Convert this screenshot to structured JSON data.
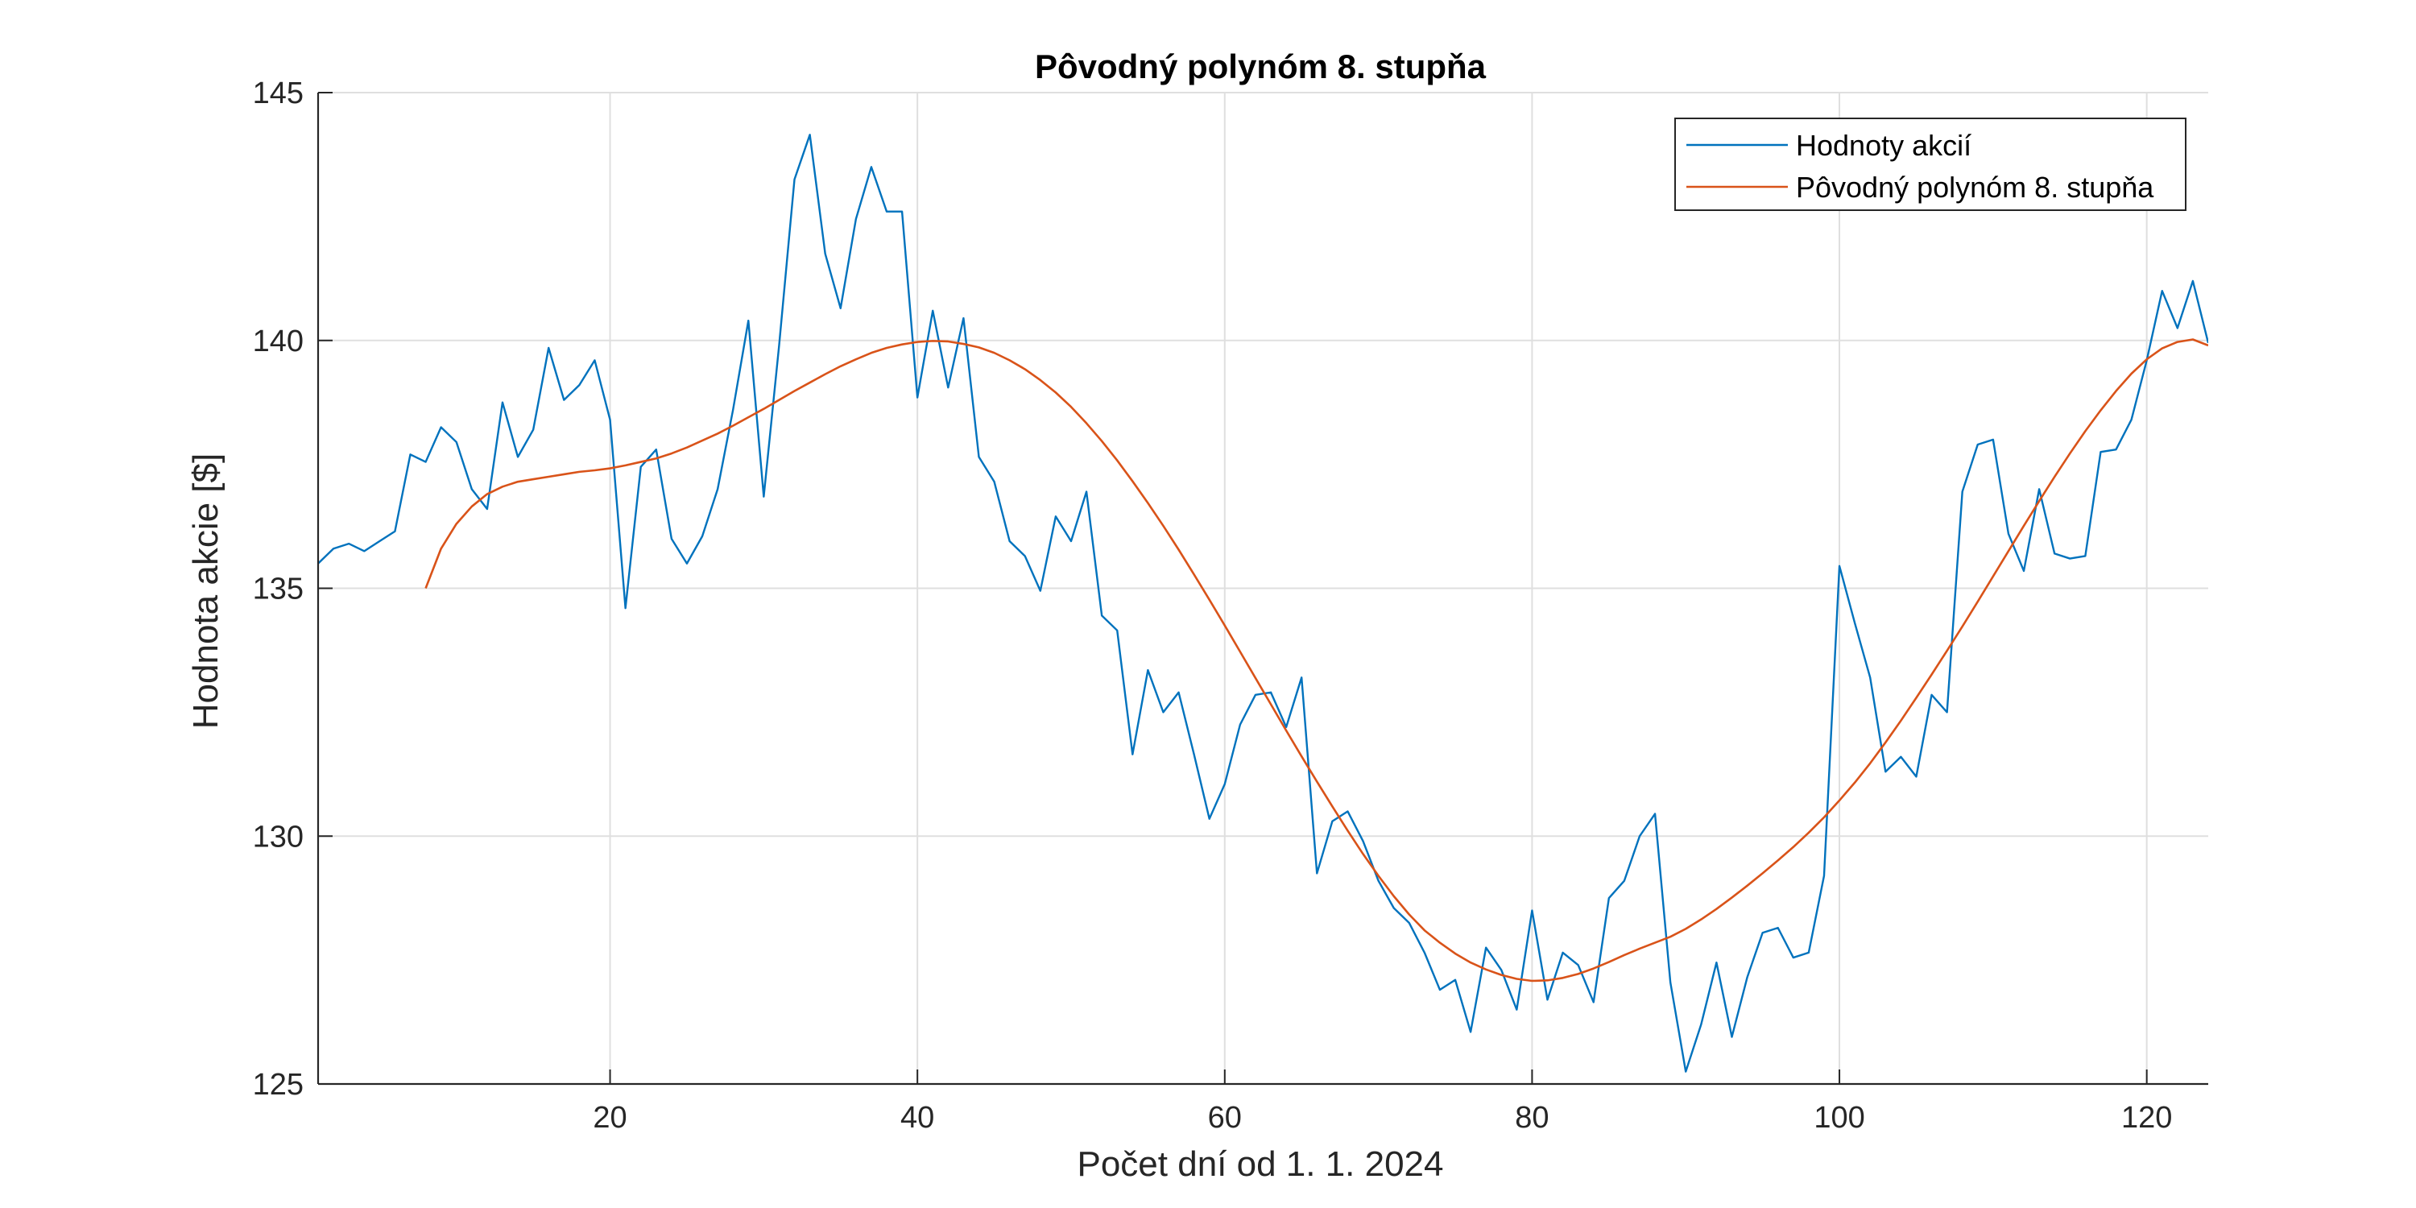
{
  "chart_data": {
    "type": "line",
    "title": "Pôvodný polynóm 8. stupňa",
    "xlabel": "Počet dní od 1. 1. 2024",
    "ylabel": "Hodnota akcie [$]",
    "xlim": [
      1,
      124
    ],
    "ylim": [
      125,
      145
    ],
    "xticks": [
      20,
      40,
      60,
      80,
      100,
      120
    ],
    "yticks": [
      125,
      130,
      135,
      140,
      145
    ],
    "xtick_labels": [
      "20",
      "40",
      "60",
      "80",
      "100",
      "120"
    ],
    "ytick_labels": [
      "125",
      "130",
      "135",
      "140",
      "145"
    ],
    "grid": true,
    "legend_position": "top-right",
    "x_start": 1,
    "series": [
      {
        "name": "Hodnoty akcií",
        "color": "#0072BD",
        "values": [
          135.5,
          135.8,
          135.9,
          135.75,
          135.95,
          136.15,
          137.7,
          137.55,
          138.25,
          137.95,
          137.0,
          136.6,
          138.75,
          137.65,
          138.2,
          139.85,
          138.8,
          139.1,
          139.6,
          138.4,
          134.6,
          137.45,
          137.8,
          136.0,
          135.5,
          136.05,
          137.0,
          138.6,
          140.4,
          136.85,
          139.9,
          143.25,
          144.15,
          141.75,
          140.65,
          142.45,
          143.5,
          142.6,
          142.6,
          138.85,
          140.6,
          139.05,
          140.45,
          137.65,
          137.15,
          135.95,
          135.65,
          134.95,
          136.45,
          135.95,
          136.95,
          134.45,
          134.15,
          131.65,
          133.35,
          132.5,
          132.9,
          131.65,
          130.35,
          131.05,
          132.25,
          132.85,
          132.9,
          132.2,
          133.2,
          129.25,
          130.3,
          130.5,
          129.9,
          129.1,
          128.55,
          128.25,
          127.65,
          126.9,
          127.1,
          126.05,
          127.75,
          127.3,
          126.5,
          128.5,
          126.7,
          127.65,
          127.4,
          126.65,
          128.75,
          129.1,
          130.0,
          130.45,
          127.05,
          125.25,
          126.2,
          127.45,
          125.95,
          127.15,
          128.05,
          128.15,
          127.55,
          127.65,
          129.2,
          135.45,
          134.3,
          133.2,
          131.3,
          131.6,
          131.2,
          132.85,
          132.5,
          136.95,
          137.9,
          138.0,
          136.1,
          135.35,
          137.0,
          135.7,
          135.6,
          135.65,
          137.75,
          137.8,
          138.4,
          139.6,
          141.0,
          140.25,
          141.2,
          139.95
        ]
      },
      {
        "name": "Pôvodný polynóm 8. stupňa",
        "color": "#D95319",
        "values": [
          135.0,
          135.8,
          136.3,
          136.65,
          136.9,
          137.05,
          137.15,
          137.2,
          137.25,
          137.3,
          137.35,
          137.38,
          137.42,
          137.48,
          137.55,
          137.62,
          137.72,
          137.84,
          137.98,
          138.12,
          138.28,
          138.45,
          138.62,
          138.8,
          138.98,
          139.15,
          139.32,
          139.48,
          139.62,
          139.75,
          139.85,
          139.92,
          139.97,
          139.99,
          139.98,
          139.93,
          139.86,
          139.75,
          139.6,
          139.42,
          139.2,
          138.95,
          138.66,
          138.33,
          137.97,
          137.58,
          137.16,
          136.72,
          136.26,
          135.78,
          135.28,
          134.77,
          134.25,
          133.72,
          133.19,
          132.66,
          132.13,
          131.61,
          131.1,
          130.6,
          130.11,
          129.64,
          129.2,
          128.79,
          128.42,
          128.1,
          127.85,
          127.63,
          127.45,
          127.31,
          127.2,
          127.12,
          127.08,
          127.09,
          127.14,
          127.22,
          127.33,
          127.46,
          127.6,
          127.73,
          127.85,
          127.97,
          128.13,
          128.32,
          128.53,
          128.76,
          129.0,
          129.25,
          129.51,
          129.78,
          130.07,
          130.38,
          130.72,
          131.08,
          131.47,
          131.89,
          132.33,
          132.79,
          133.26,
          133.74,
          134.23,
          134.73,
          135.24,
          135.75,
          136.26,
          136.76,
          137.25,
          137.72,
          138.17,
          138.59,
          138.98,
          139.33,
          139.62,
          139.84,
          139.97,
          140.02,
          139.9
        ],
        "x_start": 8
      }
    ]
  }
}
